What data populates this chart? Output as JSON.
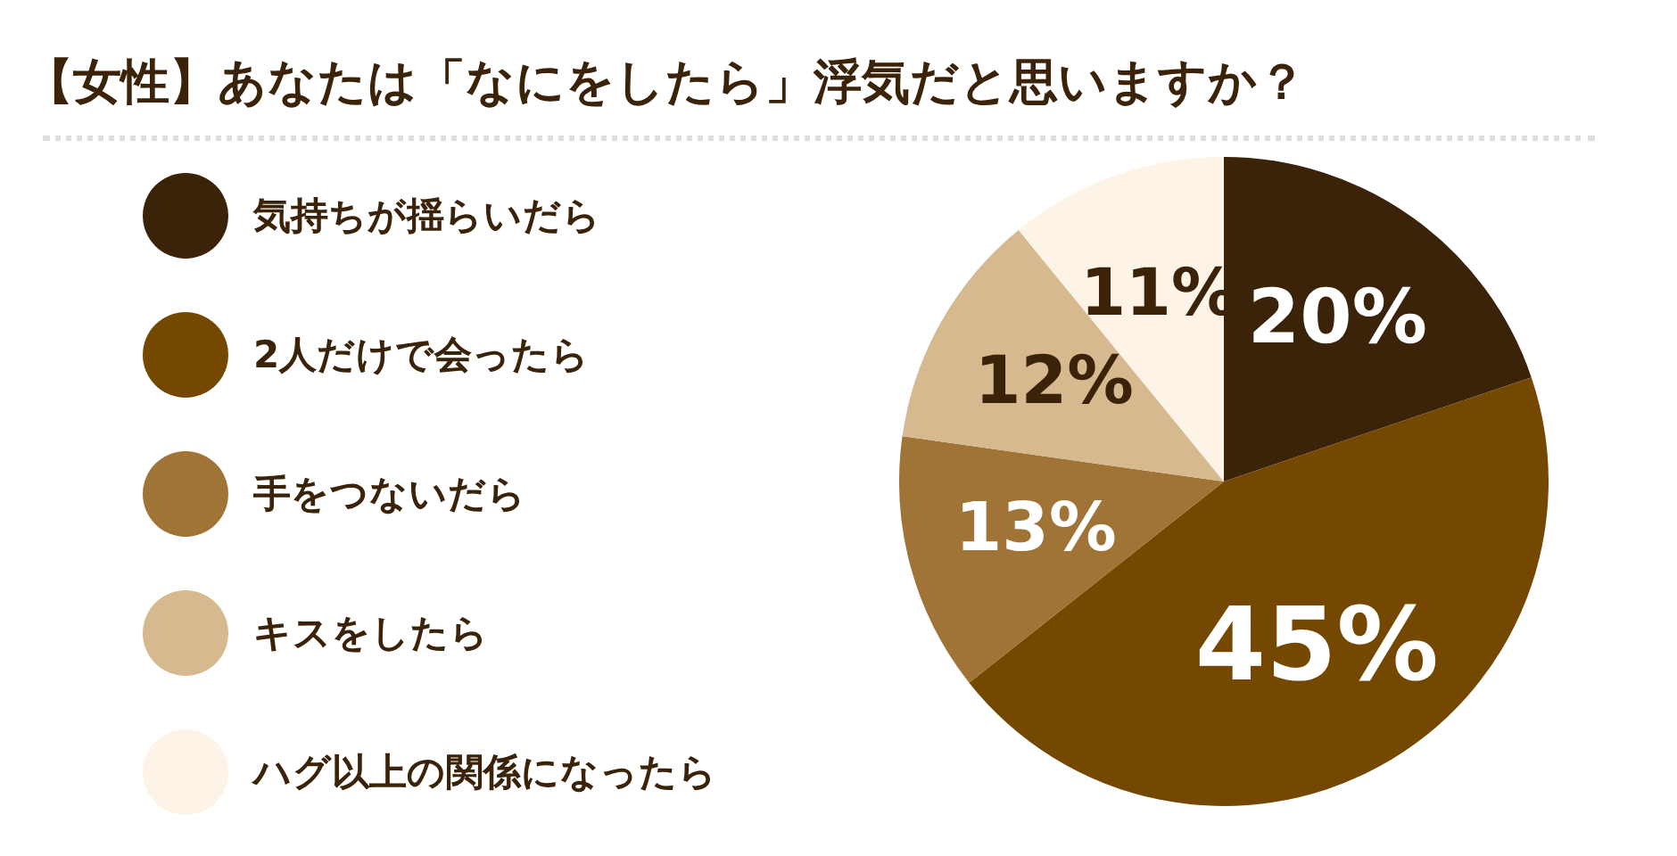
{
  "chart_data": {
    "type": "pie",
    "title": "【女性】あなたは「なにをしたら」浮気だと思いますか？",
    "categories": [
      "気持ちが揺らいだら",
      "2人だけで会ったら",
      "手をつないだら",
      "キスをしたら",
      "ハグ以上の関係になったら"
    ],
    "values": [
      20,
      45,
      13,
      12,
      11
    ],
    "colors": [
      "#3a2309",
      "#744800",
      "#a07436",
      "#d6b98e",
      "#fdf3e6"
    ],
    "value_labels": [
      "20%",
      "45%",
      "13%",
      "12%",
      "11%"
    ],
    "legend": "left"
  }
}
